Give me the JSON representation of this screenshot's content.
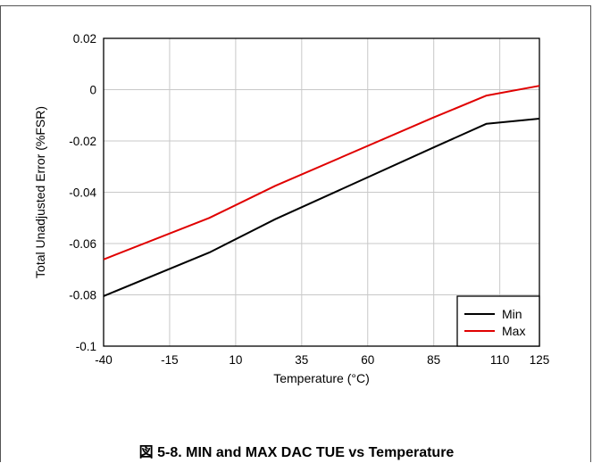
{
  "figure_caption": "図 5-8. MIN and MAX DAC TUE vs Temperature",
  "chart_data": {
    "type": "line",
    "title": "",
    "xlabel": "Temperature (°C)",
    "ylabel": "Total Unadjusted Error (%FSR)",
    "xlim": [
      -40,
      125
    ],
    "ylim": [
      -0.1,
      0.02
    ],
    "x_ticks": [
      -40,
      -15,
      10,
      35,
      60,
      85,
      110,
      125
    ],
    "x_tick_labels": [
      "-40",
      "-15",
      "10",
      "35",
      "60",
      "85",
      "110",
      "125"
    ],
    "y_ticks": [
      0.02,
      0,
      -0.02,
      -0.04,
      -0.06,
      -0.08,
      -0.1
    ],
    "y_tick_labels": [
      "0.02",
      "0",
      "-0.02",
      "-0.04",
      "-0.06",
      "-0.08",
      "-0.1"
    ],
    "grid": true,
    "legend_position": "bottom-right",
    "series": [
      {
        "name": "Min",
        "color": "#000000",
        "x": [
          -40,
          0,
          25,
          85,
          105,
          125
        ],
        "y": [
          -0.0805,
          -0.0635,
          -0.0505,
          -0.0225,
          -0.0133,
          -0.0113
        ]
      },
      {
        "name": "Max",
        "color": "#e00000",
        "x": [
          -40,
          0,
          25,
          85,
          105,
          125
        ],
        "y": [
          -0.0662,
          -0.05,
          -0.0375,
          -0.0108,
          -0.0023,
          0.0015
        ]
      }
    ]
  }
}
